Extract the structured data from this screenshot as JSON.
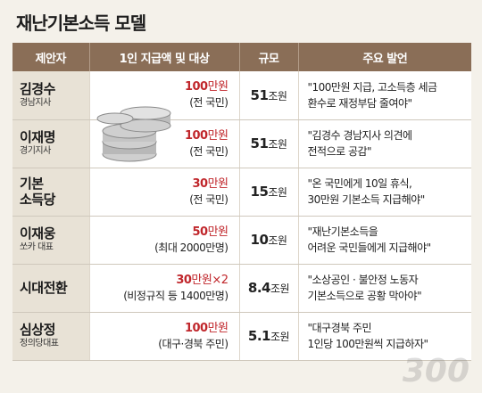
{
  "title": "재난기본소득 모델",
  "headers": [
    "제안자",
    "1인 지급액 및 대상",
    "규모",
    "주요 발언"
  ],
  "rows": [
    {
      "name": "김경수",
      "role": "경남지사",
      "amount": "100만원",
      "amount_num": "100",
      "amount_unit": "만원",
      "target": "(전 국민)",
      "scale_num": "51",
      "scale_unit": "조원",
      "quote_l1": "\"100만원 지급, 고소득층 세금",
      "quote_l2": "환수로 재정부담 줄여야\""
    },
    {
      "name": "이재명",
      "role": "경기지사",
      "amount_num": "100",
      "amount_unit": "만원",
      "target": "(전 국민)",
      "scale_num": "51",
      "scale_unit": "조원",
      "quote_l1": "\"김경수 경남지사 의견에",
      "quote_l2": "전적으로 공감\""
    },
    {
      "name": "기본",
      "name2": "소득당",
      "amount_num": "30",
      "amount_unit": "만원",
      "target": "(전 국민)",
      "scale_num": "15",
      "scale_unit": "조원",
      "quote_l1": "\"온 국민에게 10일 휴식,",
      "quote_l2": "30만원 기본소득 지급해야\""
    },
    {
      "name": "이재웅",
      "role": "쏘카 대표",
      "amount_num": "50",
      "amount_unit": "만원",
      "target": "(최대 2000만명)",
      "scale_num": "10",
      "scale_unit": "조원",
      "quote_l1": "\"재난기본소득을",
      "quote_l2": "어려운 국민들에게 지급해야\""
    },
    {
      "name": "시대전환",
      "amount_num": "30",
      "amount_unit": "만원×2",
      "target": "(비정규직 등 1400만명)",
      "scale_num": "8.4",
      "scale_unit": "조원",
      "quote_l1": "\"소상공인 · 불안정 노동자",
      "quote_l2": "기본소득으로 공황 막아야\""
    },
    {
      "name": "심상정",
      "role": "정의당대표",
      "amount_num": "100",
      "amount_unit": "만원",
      "target": "(대구·경북 주민)",
      "scale_num": "5.1",
      "scale_unit": "조원",
      "quote_l1": "\"대구경북 주민",
      "quote_l2": "1인당 100만원씩 지급하자\""
    }
  ],
  "watermark": "300"
}
